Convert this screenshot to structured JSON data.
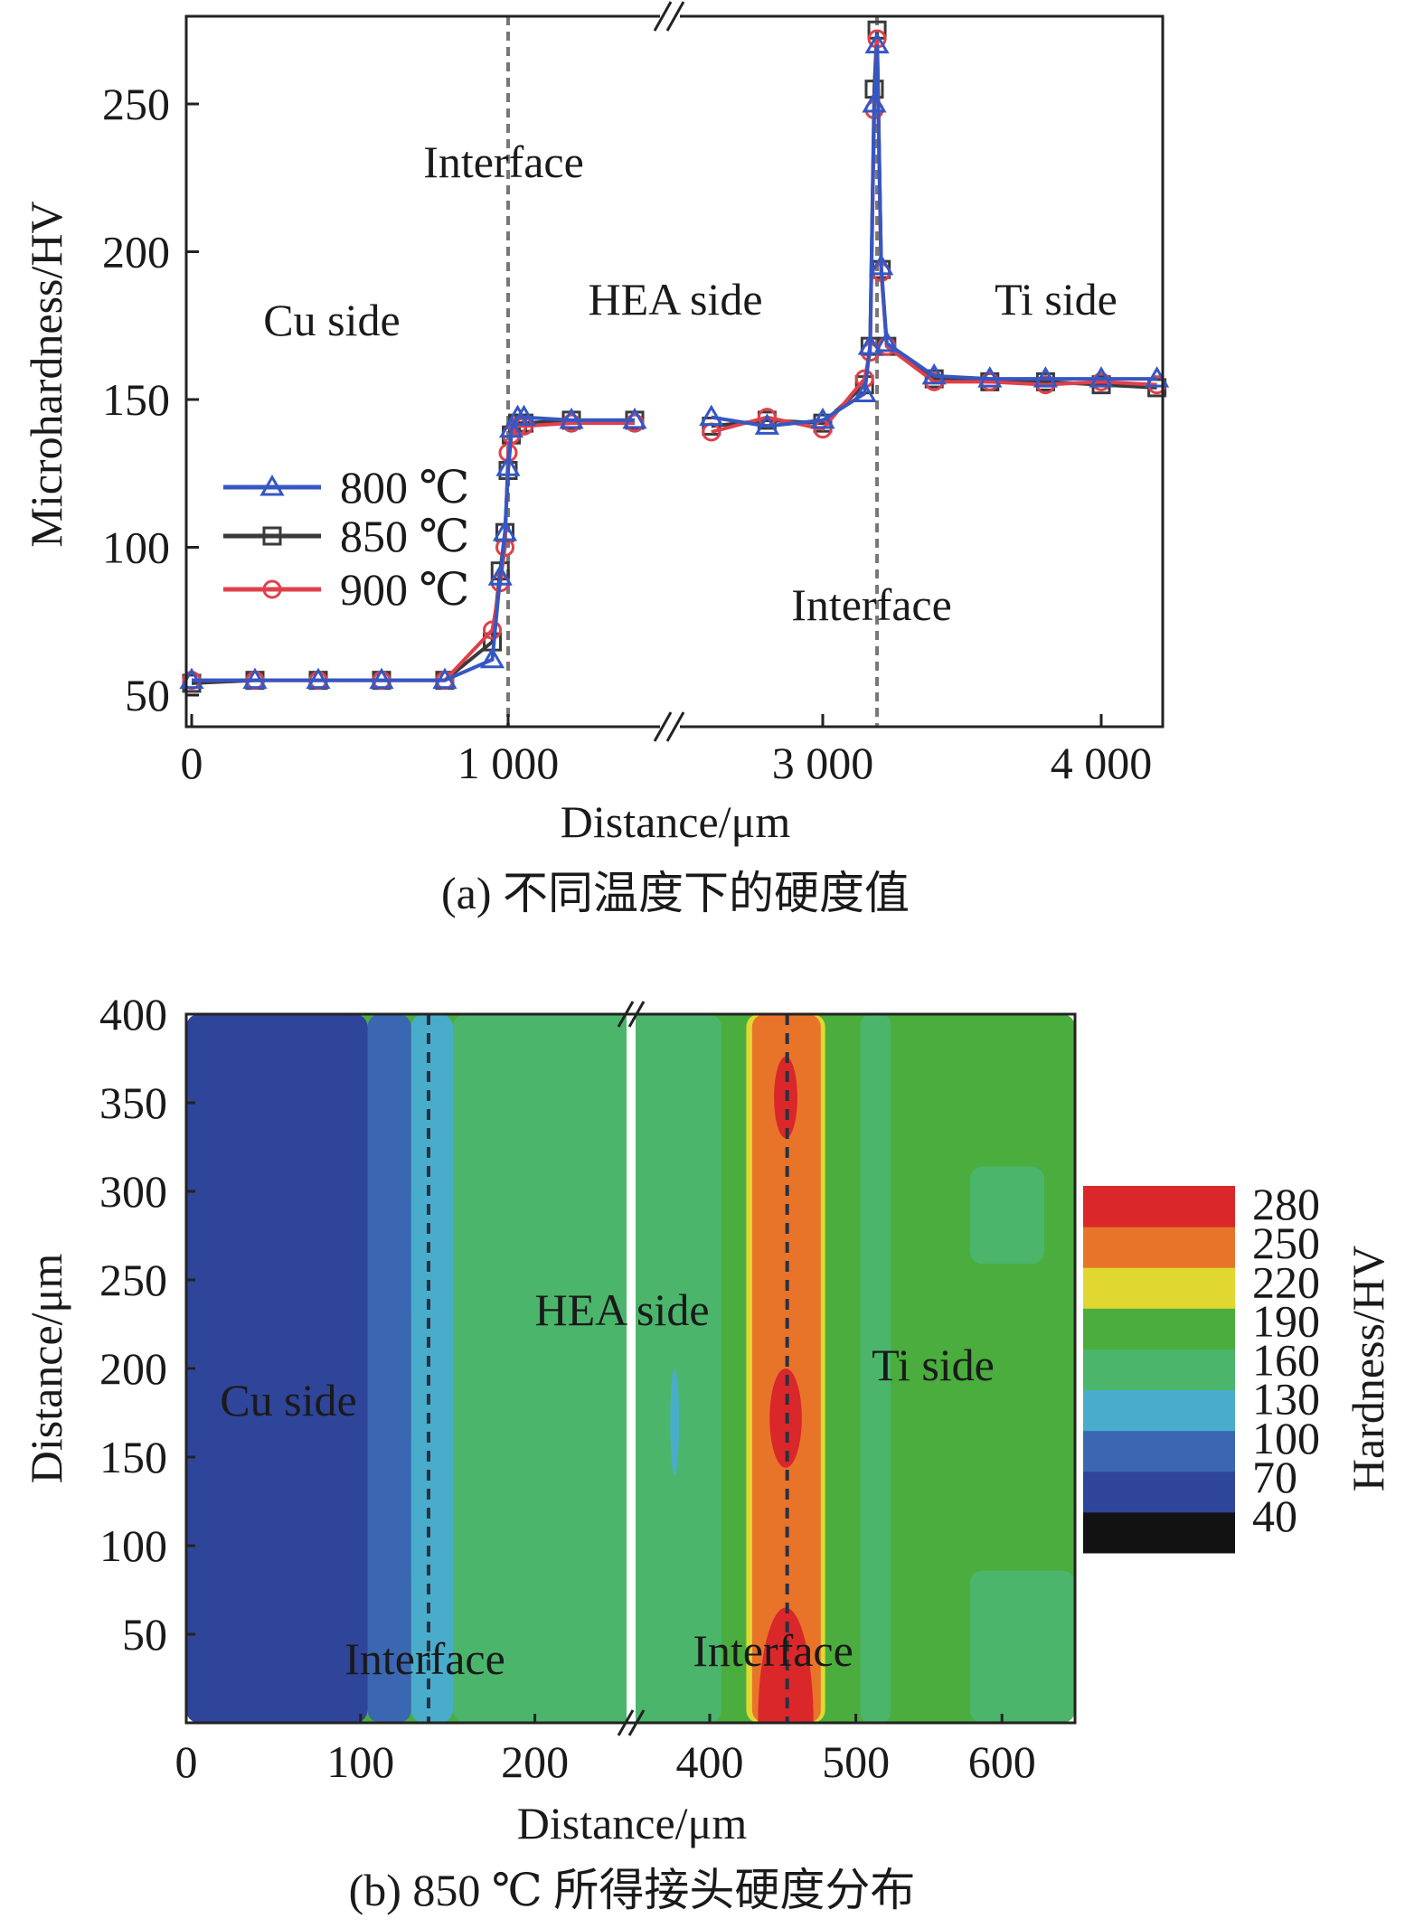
{
  "chart_data": [
    {
      "type": "line",
      "title": "",
      "caption": "(a) 不同温度下的硬度值",
      "xlabel": "Distance/μm",
      "ylabel": "Microhardness/HV",
      "xlim": [
        0,
        4200
      ],
      "x_break": [
        1520,
        2460
      ],
      "ylim": [
        39,
        280
      ],
      "xticks": [
        0,
        1000,
        3000,
        4000
      ],
      "xtick_labels": [
        "0",
        "1 000",
        "3 000",
        "4 000"
      ],
      "yticks": [
        50,
        100,
        150,
        200,
        250
      ],
      "ytick_labels": [
        "50",
        "100",
        "150",
        "200",
        "250"
      ],
      "legend_position": "left-middle",
      "annotations": {
        "interface_left": "Interface",
        "interface_right": "Interface",
        "cu_side": "Cu side",
        "hea_side": "HEA side",
        "ti_side": "Ti side"
      },
      "interface_x": [
        1000,
        3195
      ],
      "x": [
        0,
        200,
        400,
        600,
        800,
        950,
        975,
        990,
        1000,
        1010,
        1030,
        1050,
        1200,
        1400,
        2600,
        2800,
        3000,
        3150,
        3170,
        3185,
        3195,
        3210,
        3230,
        3400,
        3600,
        3800,
        4000,
        4200
      ],
      "series": [
        {
          "name": "800 ℃",
          "marker": "triangle",
          "color": "#3557c4",
          "values": [
            55,
            55,
            55,
            55,
            55,
            62,
            90,
            105,
            127,
            140,
            144,
            144,
            143,
            143,
            144,
            141,
            143,
            152,
            168,
            250,
            270,
            195,
            169,
            158,
            157,
            157,
            157,
            157
          ]
        },
        {
          "name": "850 ℃",
          "marker": "square",
          "color": "#3a3a3a",
          "values": [
            54,
            55,
            55,
            55,
            55,
            68,
            92,
            105,
            126,
            138,
            142,
            142,
            143,
            143,
            141,
            143,
            142,
            155,
            168,
            255,
            275,
            194,
            168,
            157,
            156,
            156,
            155,
            154
          ]
        },
        {
          "name": "900 ℃",
          "marker": "circle",
          "color": "#e0404a",
          "values": [
            55,
            55,
            55,
            55,
            55,
            72,
            88,
            100,
            132,
            138,
            141,
            141,
            142,
            142,
            139,
            144,
            140,
            157,
            166,
            248,
            272,
            193,
            168,
            156,
            156,
            155,
            156,
            155
          ]
        }
      ]
    },
    {
      "type": "heatmap",
      "title": "",
      "caption": "(b) 850 ℃ 所得接头硬度分布",
      "xlabel": "Distance/μm",
      "ylabel": "Distance/μm",
      "colorbar_label": "Hardness/HV",
      "xlim": [
        0,
        650
      ],
      "x_break": [
        254,
        345
      ],
      "ylim": [
        0,
        400
      ],
      "xticks": [
        0,
        100,
        200,
        400,
        500,
        600
      ],
      "xtick_labels": [
        "0",
        "100",
        "200",
        "400",
        "500",
        "600"
      ],
      "yticks": [
        50,
        100,
        150,
        200,
        250,
        300,
        350,
        400
      ],
      "ytick_labels": [
        "50",
        "100",
        "150",
        "200",
        "250",
        "300",
        "350",
        "400"
      ],
      "levels": [
        "40",
        "70",
        "100",
        "130",
        "160",
        "190",
        "220",
        "250",
        "280"
      ],
      "level_colors": [
        "#121212",
        "#2f459a",
        "#3b66b2",
        "#4aaccb",
        "#4bb56b",
        "#4aad3d",
        "#e0d830",
        "#e8742a",
        "#d9272a"
      ],
      "annotations": {
        "cu_side": "Cu side",
        "hea_side": "HEA side",
        "ti_side": "Ti side",
        "interface_left": "Interface",
        "interface_right": "Interface"
      },
      "interface_x": [
        139,
        453
      ],
      "regions": [
        {
          "shape": "rect",
          "x": [
            0,
            650
          ],
          "y": [
            0,
            400
          ],
          "band": 5
        },
        {
          "shape": "rect",
          "x": [
            153,
            408
          ],
          "y": [
            0,
            400
          ],
          "band": 4
        },
        {
          "shape": "rect",
          "x": [
            503,
            524
          ],
          "y": [
            0,
            400
          ],
          "band": 4
        },
        {
          "shape": "rect",
          "x": [
            578,
            629
          ],
          "y": [
            259,
            314
          ],
          "band": 4
        },
        {
          "shape": "rect",
          "x": [
            578,
            650
          ],
          "y": [
            0,
            86
          ],
          "band": 4
        },
        {
          "shape": "ellipse",
          "cx": 376,
          "cy": 170,
          "rx": 3,
          "ry": 30,
          "band": 3
        },
        {
          "shape": "rect",
          "x": [
            129,
            153
          ],
          "y": [
            0,
            400
          ],
          "band": 3
        },
        {
          "shape": "ellipse",
          "cx": 128,
          "cy": 120,
          "rx": 10,
          "ry": 40,
          "band": 3
        },
        {
          "shape": "ellipse",
          "cx": 130,
          "cy": 265,
          "rx": 6,
          "ry": 35,
          "band": 3
        },
        {
          "shape": "rect",
          "x": [
            104,
            129
          ],
          "y": [
            0,
            400
          ],
          "band": 2
        },
        {
          "shape": "rect",
          "x": [
            0,
            104
          ],
          "y": [
            0,
            400
          ],
          "band": 1
        },
        {
          "shape": "rect",
          "x": [
            425,
            479
          ],
          "y": [
            0,
            400
          ],
          "band": 6
        },
        {
          "shape": "rect",
          "x": [
            429,
            476
          ],
          "y": [
            0,
            400
          ],
          "band": 7
        },
        {
          "shape": "ellipse",
          "cx": 452,
          "cy": 353,
          "rx": 8,
          "ry": 23,
          "band": 8
        },
        {
          "shape": "ellipse",
          "cx": 452,
          "cy": 172,
          "rx": 11,
          "ry": 28,
          "band": 8
        },
        {
          "shape": "ellipse",
          "cx": 452,
          "cy": 0,
          "rx": 19,
          "ry": 65,
          "band": 8
        }
      ]
    }
  ]
}
